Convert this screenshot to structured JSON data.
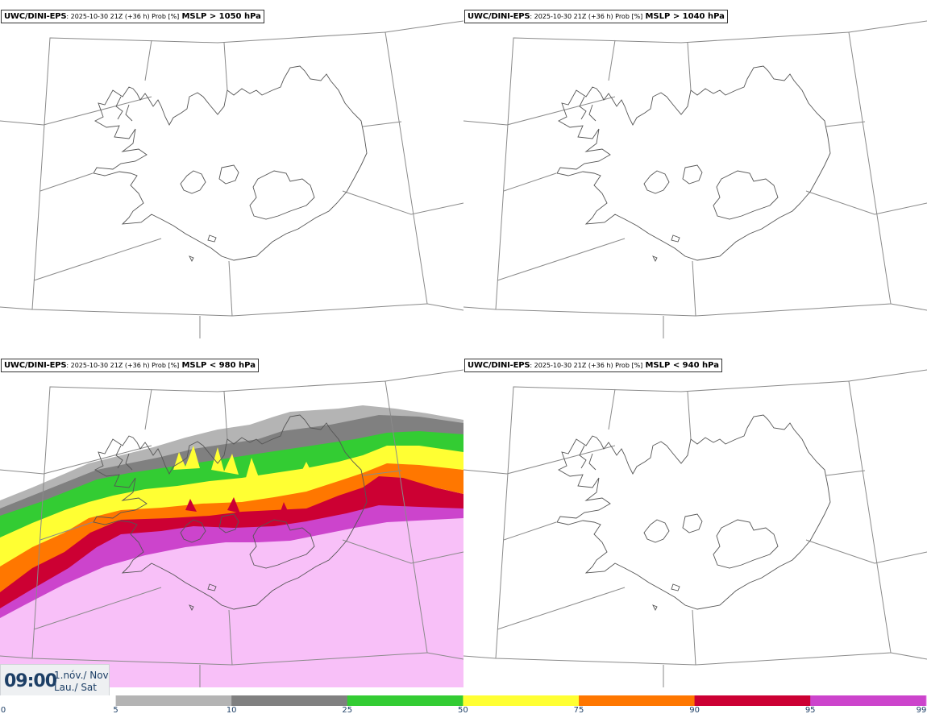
{
  "panels": [
    {
      "model": "UWC/DINI-EPS",
      "meta": ": 2025-10-30 21Z (+36 h) Prob [%]",
      "threshold": "MSLP > 1050 hPa"
    },
    {
      "model": "UWC/DINI-EPS",
      "meta": ": 2025-10-30 21Z (+36 h) Prob [%]",
      "threshold": "MSLP > 1040 hPa"
    },
    {
      "model": "UWC/DINI-EPS",
      "meta": ": 2025-10-30 21Z (+36 h) Prob [%]",
      "threshold": "MSLP < 980 hPa"
    },
    {
      "model": "UWC/DINI-EPS",
      "meta": ": 2025-10-30 21Z (+36 h) Prob [%]",
      "threshold": "MSLP < 940 hPa"
    }
  ],
  "time": {
    "clock": "09:00",
    "date_line1": "1.nóv./ Nov",
    "date_line2": "Lau./ Sat"
  },
  "legend": {
    "levels": [
      "0",
      "5",
      "10",
      "25",
      "50",
      "75",
      "90",
      "95",
      "99"
    ],
    "colors": [
      "#ffffff",
      "#b4b4b4",
      "#808080",
      "#33cc33",
      "#ffff33",
      "#ff7700",
      "#cc0033",
      "#cc44cc",
      "#f8c0f8"
    ]
  },
  "map_colors": {
    "coast": "#555555",
    "grid": "#888888"
  }
}
